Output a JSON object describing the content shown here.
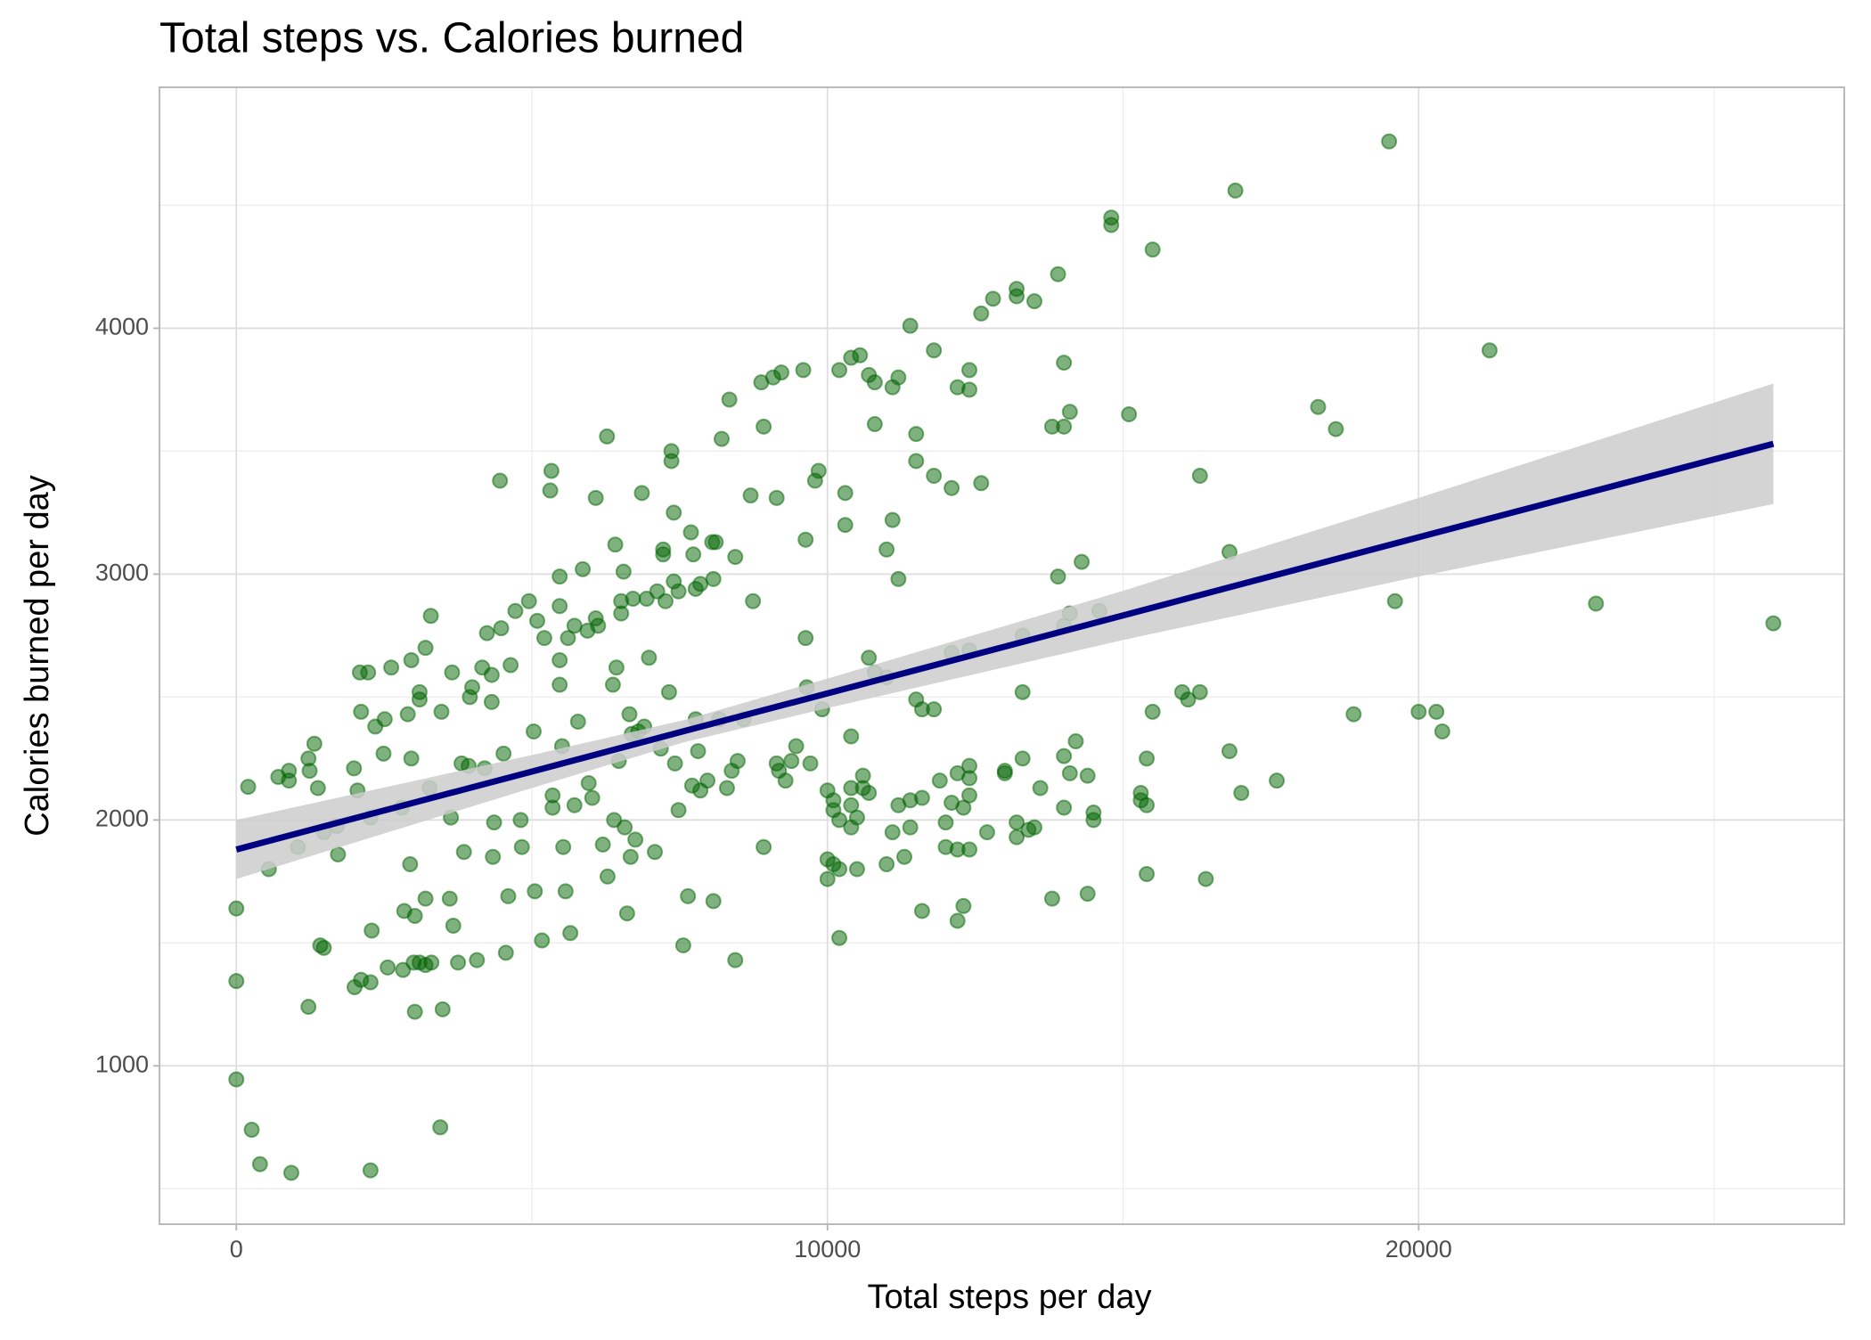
{
  "chart_data": {
    "type": "scatter",
    "title": "Total steps vs. Calories burned",
    "x_label": "Total steps per day",
    "y_label": "Calories burned per day",
    "xlim": [
      -1300,
      27200
    ],
    "ylim": [
      356,
      4980
    ],
    "xticks": [
      0,
      10000,
      20000
    ],
    "yticks": [
      1000,
      2000,
      3000,
      4000
    ],
    "x_minor_grid": [
      5000,
      15000,
      25000
    ],
    "y_minor_grid": [
      500,
      1500,
      2500,
      3500,
      4500
    ],
    "grid": true,
    "color": "#006400",
    "x": [
      0,
      0,
      0,
      260,
      400,
      930,
      2270,
      3450,
      200,
      550,
      710,
      890,
      890,
      1040,
      1220,
      1320,
      1240,
      1380,
      1220,
      1420,
      1480,
      1480,
      1700,
      1720,
      1990,
      2090,
      2050,
      2110,
      2230,
      2270,
      2350,
      2510,
      2490,
      2290,
      2000,
      2110,
      2270,
      2560,
      2620,
      2900,
      2820,
      2800,
      2840,
      2960,
      3100,
      3100,
      2960,
      2940,
      3020,
      3200,
      3290,
      3270,
      3200,
      3000,
      3100,
      3200,
      3300,
      3470,
      3490,
      3020,
      3650,
      3630,
      3610,
      3670,
      3750,
      3810,
      3850,
      3950,
      3990,
      3930,
      4070,
      4160,
      4200,
      4240,
      4320,
      4320,
      4360,
      4340,
      4460,
      4480,
      4520,
      4600,
      4560,
      4640,
      4720,
      4810,
      4830,
      4950,
      5030,
      5050,
      5090,
      5170,
      5210,
      5330,
      5310,
      5350,
      5350,
      5470,
      5470,
      5470,
      5470,
      5510,
      5530,
      5570,
      5610,
      5650,
      5720,
      5720,
      5780,
      5860,
      5940,
      5960,
      6020,
      6080,
      6080,
      6120,
      6200,
      6270,
      6280,
      6370,
      6390,
      6410,
      6430,
      6470,
      6510,
      6510,
      6550,
      6570,
      6610,
      6650,
      6690,
      6710,
      6670,
      6750,
      6800,
      6860,
      6900,
      6940,
      6980,
      7080,
      7120,
      7180,
      7220,
      7220,
      7260,
      7320,
      7360,
      7360,
      7400,
      7400,
      7420,
      7480,
      7480,
      7560,
      7640,
      7690,
      7710,
      7730,
      7770,
      7770,
      7810,
      7850,
      7850,
      7970,
      8050,
      8070,
      8110,
      8070,
      8170,
      8210,
      8300,
      8340,
      8380,
      8440,
      8440,
      8480,
      8580,
      8700,
      8740,
      8880,
      8920,
      8920,
      9080,
      9140,
      9140,
      9180,
      9220,
      9290,
      9390,
      9470,
      9590,
      9630,
      9630,
      9650,
      9710,
      9790,
      9850,
      9910,
      10200,
      10400,
      10550,
      10700,
      10800,
      11100,
      11200,
      11400,
      11800,
      12200,
      12400,
      12400,
      12600,
      12800,
      13200,
      13200,
      13500,
      13900,
      14000,
      14000,
      14100,
      13800,
      14800,
      14800,
      15500,
      16900,
      19500,
      21200,
      18300,
      18600,
      15100,
      16300,
      11500,
      11500,
      11800,
      12100,
      12600,
      10300,
      10300,
      11100,
      11000,
      11200,
      10800,
      13900,
      14100,
      14600,
      14300,
      14000,
      13300,
      13300,
      12400,
      12100,
      16800,
      19600,
      23000,
      26000,
      10700,
      10800,
      11000,
      11500,
      11600,
      11800,
      15500,
      16000,
      16100,
      16300,
      18900,
      20000,
      20300,
      20400,
      14200,
      14000,
      13300,
      14100,
      14400,
      13000,
      12400,
      12400,
      12200,
      12400,
      11900,
      11400,
      11200,
      11600,
      10400,
      10400,
      10000,
      10100,
      10100,
      10200,
      10000,
      10000,
      10100,
      10200,
      10400,
      10500,
      10400,
      10600,
      10600,
      10700,
      10500,
      11000,
      11100,
      11300,
      11400,
      11600,
      12000,
      12200,
      12200,
      12300,
      12100,
      12000,
      12300,
      12400,
      12700,
      13000,
      13200,
      13200,
      13500,
      13400,
      13600,
      13800,
      14000,
      14400,
      14500,
      14500,
      15300,
      15300,
      15400,
      15400,
      15400,
      16400,
      16800,
      17000,
      17600,
      10200
    ],
    "y": [
      1640,
      1345,
      945,
      740,
      600,
      565,
      575,
      750,
      2135,
      1800,
      2175,
      2200,
      2160,
      1890,
      2250,
      2310,
      2200,
      2130,
      1240,
      1490,
      1480,
      1950,
      1975,
      1860,
      2210,
      2600,
      2120,
      2440,
      2600,
      2010,
      2380,
      2410,
      2270,
      1550,
      1320,
      1350,
      1340,
      1400,
      2620,
      2430,
      1390,
      2050,
      1630,
      2650,
      2520,
      2490,
      2250,
      1820,
      1610,
      2700,
      2830,
      2130,
      1680,
      1420,
      1420,
      1410,
      1420,
      2440,
      1230,
      1220,
      2600,
      2010,
      1680,
      1570,
      1420,
      2230,
      1870,
      2500,
      2540,
      2220,
      1430,
      2620,
      2210,
      2760,
      2590,
      2480,
      1990,
      1850,
      3380,
      2780,
      2270,
      1690,
      1460,
      2630,
      2850,
      2000,
      1890,
      2890,
      2360,
      1710,
      2810,
      1510,
      2740,
      3420,
      3340,
      2100,
      2050,
      2550,
      2650,
      2870,
      2990,
      2300,
      1890,
      1710,
      2740,
      1540,
      2790,
      2060,
      2400,
      3020,
      2770,
      2150,
      2090,
      3310,
      2820,
      2790,
      1900,
      3560,
      1770,
      2550,
      2000,
      3120,
      2620,
      2240,
      2840,
      2890,
      3010,
      1970,
      1620,
      2430,
      2350,
      2900,
      1850,
      1920,
      2360,
      3330,
      2380,
      2900,
      2660,
      1870,
      2930,
      2290,
      3080,
      3100,
      2890,
      2520,
      3500,
      3460,
      3250,
      2970,
      2230,
      2930,
      2040,
      1490,
      1690,
      3170,
      2140,
      3080,
      2940,
      2410,
      2280,
      2960,
      2120,
      2160,
      3130,
      2980,
      3130,
      1670,
      2410,
      3550,
      2130,
      3710,
      2200,
      3070,
      1430,
      2240,
      2410,
      3320,
      2890,
      3780,
      3600,
      1890,
      3800,
      3310,
      2230,
      2200,
      3820,
      2160,
      2240,
      2300,
      3830,
      3140,
      2740,
      2540,
      2230,
      3380,
      3420,
      2450,
      3830,
      3880,
      3890,
      3810,
      3780,
      3760,
      3800,
      4010,
      3910,
      3760,
      3830,
      3750,
      4060,
      4120,
      4160,
      4130,
      4110,
      4220,
      3860,
      3600,
      3660,
      3600,
      4450,
      4420,
      4320,
      4560,
      4760,
      3910,
      3680,
      3590,
      3650,
      3400,
      3570,
      3460,
      3400,
      3350,
      3370,
      3330,
      3200,
      3220,
      3100,
      2980,
      3610,
      2990,
      2840,
      2850,
      3050,
      2790,
      2750,
      2520,
      2690,
      2680,
      3090,
      2890,
      2880,
      2800,
      2660,
      2600,
      2580,
      2490,
      2450,
      2450,
      2440,
      2520,
      2490,
      2520,
      2430,
      2440,
      2440,
      2360,
      2320,
      2260,
      2250,
      2190,
      2180,
      2190,
      2220,
      2170,
      2190,
      2100,
      2160,
      2080,
      2060,
      2090,
      2340,
      2130,
      2120,
      2080,
      2040,
      2000,
      1840,
      1760,
      1820,
      1800,
      1970,
      2010,
      2060,
      2130,
      2180,
      2110,
      1800,
      1820,
      1950,
      1850,
      1970,
      1630,
      1890,
      1880,
      1590,
      1650,
      2070,
      1990,
      2050,
      1880,
      1950,
      2200,
      1990,
      1930,
      1970,
      1960,
      2130,
      1680,
      2050,
      1700,
      2030,
      2000,
      2080,
      2110,
      2060,
      1780,
      2250,
      1760,
      2280,
      2110,
      2160,
      1520
    ],
    "fit": {
      "color": "#000080",
      "band_color": "#cccccc",
      "x": [
        0,
        5000,
        7600,
        10000,
        15000,
        20000,
        26000
      ],
      "y": [
        1880,
        2197,
        2363,
        2515,
        2832,
        3150,
        3530
      ],
      "lower": [
        1760,
        2130,
        2318,
        2455,
        2732,
        2990,
        3285
      ],
      "upper": [
        2000,
        2264,
        2408,
        2575,
        2932,
        3310,
        3775
      ]
    }
  }
}
